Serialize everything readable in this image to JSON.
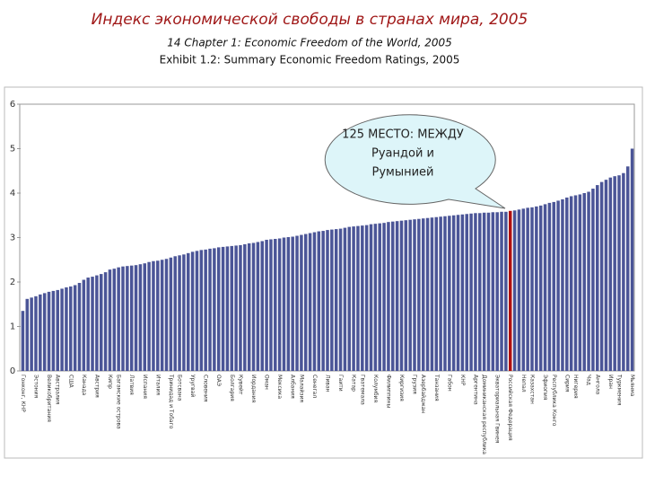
{
  "chart_data": {
    "type": "bar",
    "title": "Индекс экономической свободы в странах мира, 2005",
    "subtitle": "14 Chapter 1: Economic Freedom of the World, 2005",
    "subtitle2": "Exhibit 1.2: Summary Economic Freedom Ratings, 2005",
    "annotation": [
      "125 МЕСТО: МЕЖДУ",
      "Руандой и",
      "Румынией"
    ],
    "color": "#4b5597",
    "highlight_index": 112,
    "highlight_color": "#b01010",
    "ylim": [
      0,
      6
    ],
    "yticks": [
      0,
      1,
      2,
      3,
      4,
      5,
      6
    ],
    "categories": [
      "Гонконг, КНР",
      null,
      null,
      "Эстония",
      null,
      null,
      "Великобритания",
      null,
      "Австралия",
      null,
      null,
      "США",
      null,
      null,
      "Канада",
      null,
      null,
      "Австрия",
      null,
      null,
      "Кипр",
      null,
      "Багамские острова",
      null,
      null,
      "Латвия",
      null,
      null,
      "Испания",
      null,
      null,
      "Италия",
      null,
      null,
      "Тринидад и Тобаго",
      null,
      "Ботсвана",
      null,
      null,
      "Уругвай",
      null,
      null,
      "Словения",
      null,
      null,
      "ОАЭ",
      null,
      null,
      "Болгария",
      null,
      "Кувейт",
      null,
      null,
      "Иордания",
      null,
      null,
      "Оман",
      null,
      null,
      "Мексика",
      null,
      null,
      "Албания",
      null,
      "Малайзия",
      null,
      null,
      "Сенегал",
      null,
      null,
      "Ливан",
      null,
      null,
      "Гаити",
      null,
      null,
      "Катар",
      null,
      "Гватемала",
      null,
      null,
      "Колумбия",
      null,
      null,
      "Филиппины",
      null,
      null,
      "Киргизия",
      null,
      null,
      "Грузия",
      null,
      "Азербайджан",
      null,
      null,
      "Танзания",
      null,
      null,
      "Габон",
      null,
      null,
      "КНР",
      null,
      null,
      "Аргентина",
      null,
      "Доминиканская республика",
      null,
      null,
      "Экваториальная Гвинея",
      null,
      null,
      "Российская Федерация",
      null,
      null,
      "Непал",
      null,
      "Казахстан",
      null,
      null,
      "Эфиопия",
      null,
      "Республика Конго",
      null,
      null,
      "Сирия",
      null,
      "Нигерия",
      null,
      null,
      "Чад",
      null,
      "Ангола",
      null,
      null,
      "Иран",
      null,
      "Туркмения",
      null,
      null,
      "Мьянма"
    ],
    "values": [
      1.35,
      1.62,
      1.65,
      1.68,
      1.72,
      1.75,
      1.78,
      1.8,
      1.82,
      1.85,
      1.88,
      1.9,
      1.93,
      1.98,
      2.05,
      2.1,
      2.12,
      2.15,
      2.18,
      2.22,
      2.28,
      2.3,
      2.33,
      2.35,
      2.36,
      2.37,
      2.38,
      2.4,
      2.42,
      2.45,
      2.47,
      2.48,
      2.5,
      2.52,
      2.55,
      2.58,
      2.6,
      2.62,
      2.65,
      2.68,
      2.7,
      2.72,
      2.73,
      2.75,
      2.76,
      2.78,
      2.79,
      2.8,
      2.81,
      2.82,
      2.83,
      2.85,
      2.87,
      2.88,
      2.9,
      2.92,
      2.95,
      2.96,
      2.97,
      2.98,
      3.0,
      3.01,
      3.02,
      3.04,
      3.06,
      3.08,
      3.1,
      3.12,
      3.14,
      3.15,
      3.17,
      3.18,
      3.19,
      3.2,
      3.22,
      3.24,
      3.25,
      3.26,
      3.27,
      3.28,
      3.3,
      3.31,
      3.32,
      3.33,
      3.35,
      3.36,
      3.37,
      3.38,
      3.39,
      3.4,
      3.41,
      3.42,
      3.43,
      3.44,
      3.45,
      3.46,
      3.47,
      3.48,
      3.49,
      3.5,
      3.51,
      3.52,
      3.53,
      3.54,
      3.55,
      3.55,
      3.56,
      3.56,
      3.57,
      3.57,
      3.58,
      3.58,
      3.6,
      3.61,
      3.63,
      3.65,
      3.67,
      3.68,
      3.7,
      3.72,
      3.75,
      3.78,
      3.8,
      3.83,
      3.86,
      3.9,
      3.93,
      3.95,
      3.97,
      4.0,
      4.03,
      4.1,
      4.18,
      4.25,
      4.3,
      4.35,
      4.38,
      4.4,
      4.45,
      4.6,
      5.0
    ]
  }
}
